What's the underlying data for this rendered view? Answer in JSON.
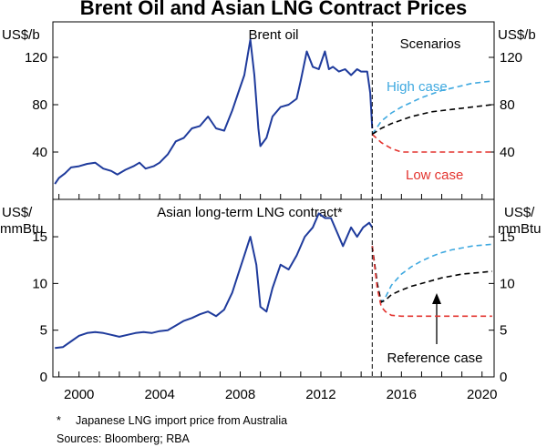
{
  "chart_data": {
    "type": "line",
    "title": "Brent Oil and Asian LNG Contract Prices",
    "x_ticks": [
      "2000",
      "2004",
      "2008",
      "2012",
      "2016",
      "2020"
    ],
    "xlim": [
      1998.7,
      2020.6
    ],
    "forecast_start": 2014.55,
    "notes": [
      "*",
      "Japanese LNG import price from Australia"
    ],
    "sources": "Sources:  Bloomberg; RBA",
    "panels": [
      {
        "title": "Brent oil",
        "unit_left": "US$/b",
        "unit_right": "US$/b",
        "ylim": [
          0,
          150
        ],
        "yticks": [
          40,
          80,
          120
        ],
        "scenarios_label": "Scenarios",
        "labels": {
          "high": "High case",
          "low": "Low case"
        },
        "history": {
          "x": [
            1998.8,
            1999.0,
            1999.3,
            1999.6,
            2000.0,
            2000.4,
            2000.8,
            2001.2,
            2001.6,
            2001.9,
            2002.3,
            2002.7,
            2003.0,
            2003.3,
            2003.7,
            2004.0,
            2004.4,
            2004.8,
            2005.2,
            2005.6,
            2006.0,
            2006.4,
            2006.8,
            2007.2,
            2007.6,
            2007.9,
            2008.2,
            2008.5,
            2008.7,
            2008.9,
            2009.0,
            2009.3,
            2009.6,
            2010.0,
            2010.4,
            2010.8,
            2011.0,
            2011.3,
            2011.6,
            2011.9,
            2012.2,
            2012.4,
            2012.6,
            2012.9,
            2013.2,
            2013.5,
            2013.8,
            2014.0,
            2014.3,
            2014.45,
            2014.55
          ],
          "y": [
            13,
            18,
            22,
            27,
            28,
            30,
            31,
            26,
            24,
            21,
            25,
            28,
            31,
            26,
            28,
            31,
            38,
            49,
            52,
            60,
            62,
            70,
            60,
            58,
            75,
            90,
            105,
            135,
            105,
            60,
            45,
            52,
            70,
            78,
            80,
            85,
            100,
            125,
            112,
            110,
            125,
            110,
            112,
            108,
            110,
            105,
            110,
            108,
            108,
            90,
            60
          ]
        },
        "scenarios": {
          "x": [
            2014.55,
            2015.0,
            2015.5,
            2016.0,
            2016.5,
            2017.0,
            2017.5,
            2018.0,
            2018.5,
            2019.0,
            2019.5,
            2020.0,
            2020.5
          ],
          "high": [
            55,
            66,
            73,
            78,
            82,
            86,
            89,
            92,
            94,
            96,
            98,
            99,
            100
          ],
          "reference": [
            55,
            60,
            64,
            67,
            70,
            72,
            74,
            75,
            76,
            77,
            78,
            79,
            80
          ],
          "low": [
            55,
            48,
            43,
            40,
            40,
            40,
            40,
            40,
            40,
            40,
            40,
            40,
            40
          ]
        }
      },
      {
        "title": "Asian long-term LNG contract*",
        "unit_left": [
          "US$/",
          "mmBtu"
        ],
        "unit_right": [
          "US$/",
          "mmBtu"
        ],
        "ylim": [
          0,
          19
        ],
        "yticks": [
          0,
          5,
          10,
          15
        ],
        "labels": {
          "reference": "Reference case"
        },
        "history": {
          "x": [
            1998.8,
            1999.2,
            1999.6,
            2000.0,
            2000.4,
            2000.8,
            2001.2,
            2001.6,
            2002.0,
            2002.4,
            2002.8,
            2003.2,
            2003.6,
            2004.0,
            2004.4,
            2004.8,
            2005.2,
            2005.6,
            2006.0,
            2006.4,
            2006.8,
            2007.2,
            2007.6,
            2007.9,
            2008.2,
            2008.5,
            2008.8,
            2009.0,
            2009.3,
            2009.6,
            2010.0,
            2010.4,
            2010.8,
            2011.2,
            2011.6,
            2011.9,
            2012.2,
            2012.5,
            2012.8,
            2013.1,
            2013.5,
            2013.8,
            2014.1,
            2014.4,
            2014.55
          ],
          "y": [
            3.1,
            3.2,
            3.8,
            4.4,
            4.7,
            4.8,
            4.7,
            4.5,
            4.3,
            4.5,
            4.7,
            4.8,
            4.7,
            4.9,
            5.0,
            5.5,
            6.0,
            6.3,
            6.7,
            7.0,
            6.5,
            7.2,
            9.0,
            11.0,
            13.0,
            15.0,
            12.0,
            7.5,
            7.0,
            9.5,
            12.0,
            11.5,
            13.0,
            15.0,
            16.0,
            17.5,
            17.0,
            17.0,
            15.5,
            14.0,
            16.0,
            15.0,
            16.0,
            16.5,
            16.0
          ]
        },
        "scenarios": {
          "x": [
            2014.55,
            2014.8,
            2015.0,
            2015.2,
            2015.5,
            2016.0,
            2016.5,
            2017.0,
            2017.5,
            2018.0,
            2018.5,
            2019.0,
            2019.5,
            2020.0,
            2020.5
          ],
          "high": [
            14.0,
            10.0,
            8.0,
            8.5,
            9.8,
            11.0,
            11.8,
            12.4,
            12.9,
            13.3,
            13.6,
            13.8,
            14.0,
            14.1,
            14.2
          ],
          "reference": [
            14.0,
            10.0,
            8.0,
            8.2,
            8.8,
            9.3,
            9.7,
            10.0,
            10.3,
            10.6,
            10.8,
            11.0,
            11.1,
            11.2,
            11.3
          ],
          "low": [
            14.0,
            9.5,
            7.5,
            7.0,
            6.6,
            6.5,
            6.5,
            6.5,
            6.5,
            6.5,
            6.5,
            6.5,
            6.5,
            6.5,
            6.5
          ]
        }
      }
    ],
    "colors": {
      "history": "#1f3b9c",
      "high": "#3fa9e0",
      "reference": "#000000",
      "low": "#e3342f"
    }
  }
}
